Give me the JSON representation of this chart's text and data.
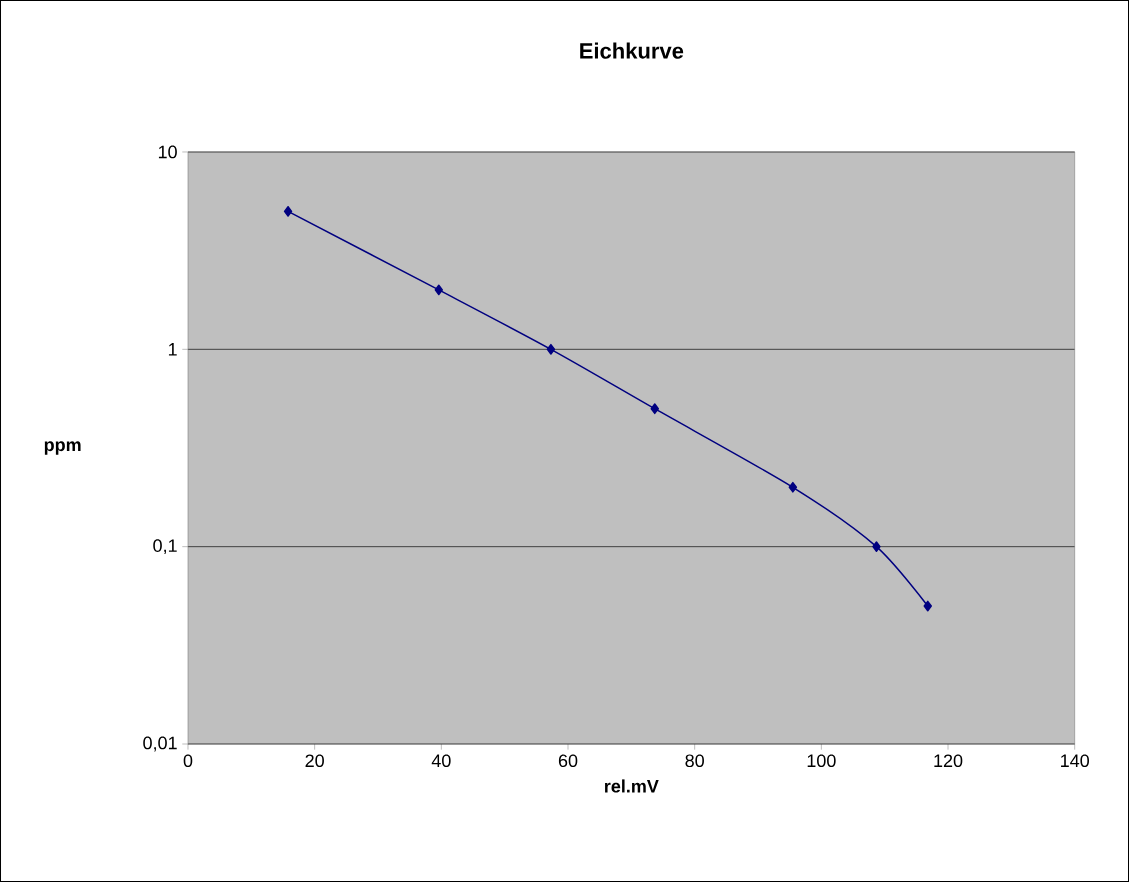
{
  "chart_data": {
    "type": "line",
    "title": "Eichkurve",
    "xlabel": "rel.mV",
    "ylabel": "ppm",
    "x": [
      15.8,
      39.6,
      57.3,
      73.7,
      95.5,
      108.7,
      116.8
    ],
    "values": [
      5,
      2,
      1,
      0.5,
      0.2,
      0.1,
      0.05
    ],
    "color": "#000080",
    "marker": "diamond",
    "line_style": "solid",
    "log": true,
    "grid": "y",
    "xlim": [
      0,
      140
    ],
    "xticks": [
      0,
      20,
      40,
      60,
      80,
      100,
      120,
      140
    ],
    "ylim": [
      0.01,
      10
    ],
    "yticks": [
      {
        "value": 0.01,
        "label": "0,01"
      },
      {
        "value": 0.1,
        "label": "0,1"
      },
      {
        "value": 1,
        "label": "1"
      },
      {
        "value": 10,
        "label": "10"
      }
    ]
  }
}
